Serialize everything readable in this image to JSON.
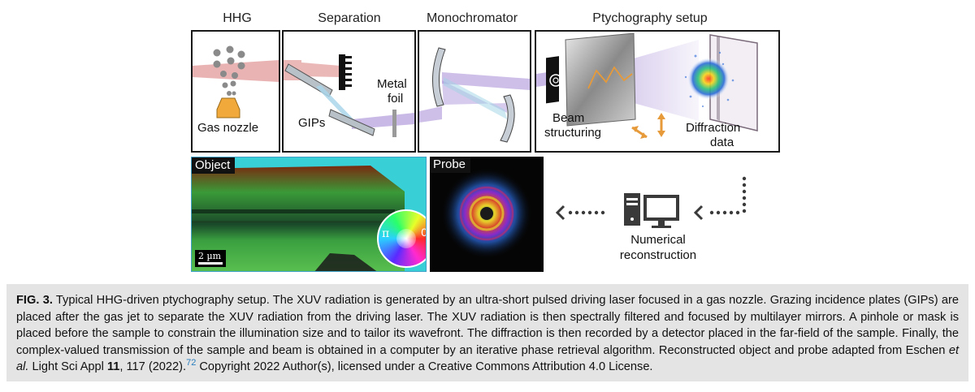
{
  "panels": {
    "hhg": {
      "title": "HHG",
      "nozzle_label": "Gas nozzle"
    },
    "separation": {
      "title": "Separation",
      "gips_label": "GIPs",
      "foil_label_1": "Metal",
      "foil_label_2": "foil"
    },
    "monochromator": {
      "title": "Monochromator"
    },
    "ptychography": {
      "title": "Ptychography setup",
      "beam_label_1": "Beam",
      "beam_label_2": "structuring",
      "diff_label_1": "Diffraction",
      "diff_label_2": "data"
    }
  },
  "object_panel": {
    "tag": "Object",
    "scale": "2 µm",
    "phase_pi": "π",
    "phase_zero": "0"
  },
  "probe_panel": {
    "tag": "Probe"
  },
  "reconstruction": {
    "label_1": "Numerical",
    "label_2": "reconstruction"
  },
  "caption": {
    "fig": "FIG. 3.",
    "text_1": " Typical HHG-driven ptychography setup. The XUV radiation is generated by an ultra-short pulsed driving laser focused in a gas nozzle. Grazing incidence plates (GIPs) are placed after the gas jet to separate the XUV radiation from the driving laser. The XUV radiation is then spectrally filtered and focused by multilayer mirrors. A pinhole or mask is placed before the sample to constrain the illumination size and to tailor its wavefront. The diffraction is then recorded by a detector placed in the far-field of the sample. Finally, the complex-valued transmission of the sample and beam is obtained in a computer by an iterative phase retrieval algorithm. Reconstructed object and probe adapted from Eschen ",
    "etal": "et al.",
    "text_2": " Light Sci Appl ",
    "vol": "11",
    "text_3": ", 117 (2022).",
    "ref": "72",
    "text_4": " Copyright 2022 Author(s), licensed under a Creative Commons Attribution 4.0 License."
  },
  "colors": {
    "laser": "#e39a9a",
    "xuv": "#a58bd6",
    "xuv_light": "#9fd3e6",
    "arrow": "#e69a3a",
    "nozzle": "#f0a93a"
  }
}
